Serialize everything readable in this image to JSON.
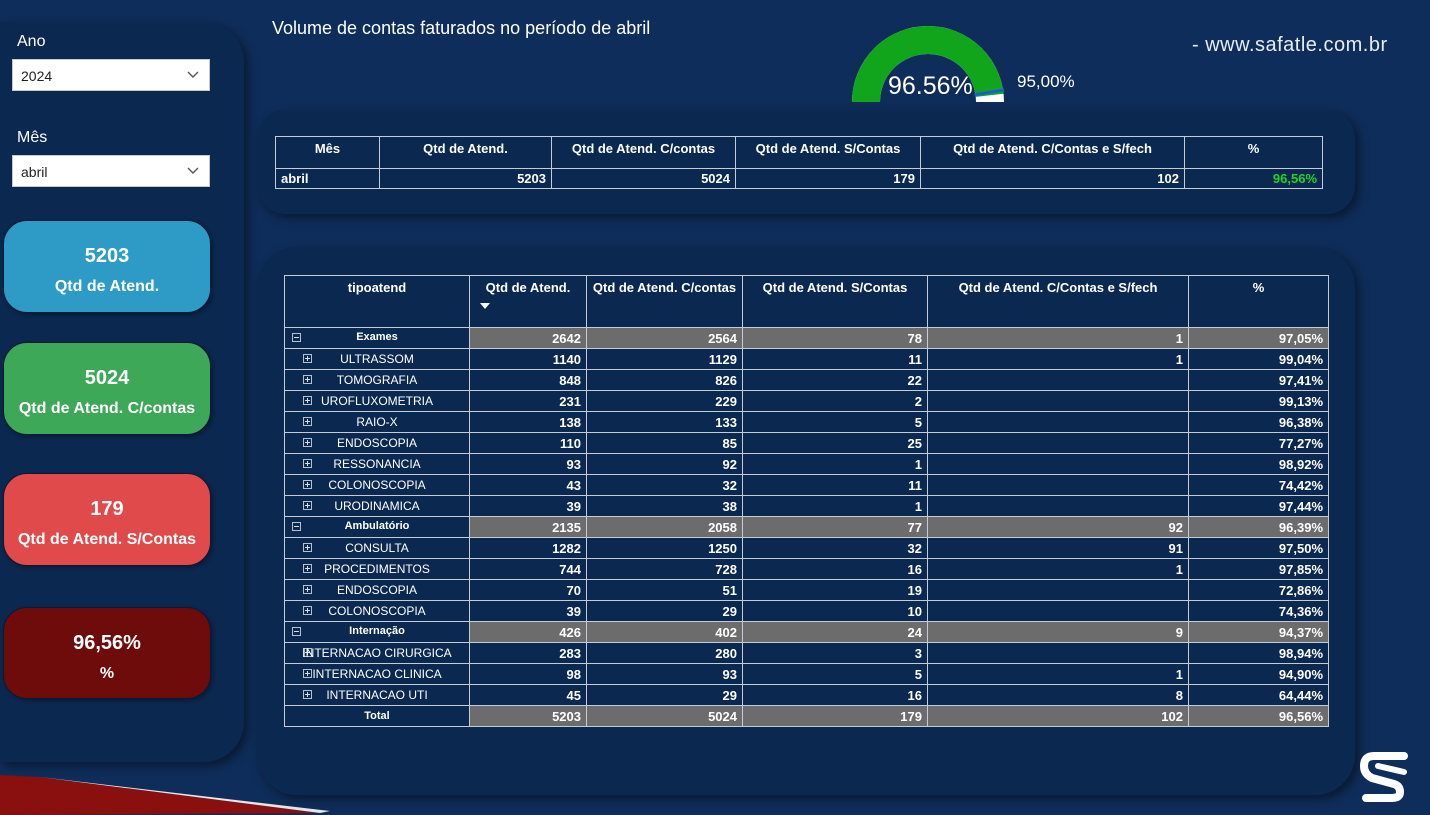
{
  "title": "Volume de contas faturados no período de abril",
  "website": "-   www.safatle.com.br",
  "filters": {
    "ano_label": "Ano",
    "ano_value": "2024",
    "mes_label": "Mês",
    "mes_value": "abril"
  },
  "kpis": [
    {
      "value": "5203",
      "label": "Qtd de Atend.",
      "color": "#2e9bc7"
    },
    {
      "value": "5024",
      "label": "Qtd de Atend. C/contas",
      "color": "#3da858"
    },
    {
      "value": "179",
      "label": "Qtd de Atend. S/Contas",
      "color": "#e04a4a"
    },
    {
      "value": "96,56%",
      "label": "%",
      "color": "#6e0b0b"
    }
  ],
  "gauge": {
    "value_label": "96.56%",
    "target_label": "95,00%",
    "value": 96.56,
    "target": 95.0,
    "fill_color": "#11a51c",
    "track_color": "#ffffff",
    "target_color": "#1a5bd6"
  },
  "summary_table": {
    "headers": [
      "Mês",
      "Qtd de Atend.",
      "Qtd de Atend. C/contas",
      "Qtd de Atend. S/Contas",
      "Qtd de Atend. C/Contas e S/fech",
      "%"
    ],
    "row": [
      "abril",
      "5203",
      "5024",
      "179",
      "102",
      "96,56%"
    ]
  },
  "detail_table": {
    "headers": [
      "tipoatend",
      "Qtd de Atend.",
      "Qtd de Atend. C/contas",
      "Qtd de Atend. S/Contas",
      "Qtd de Atend. C/Contas e S/fech",
      "%"
    ],
    "groups": [
      {
        "name": "Exames",
        "qtd": "2642",
        "com": "2564",
        "sem": "78",
        "fech": "1",
        "pct": "97,05%",
        "rows": [
          {
            "name": "ULTRASSOM",
            "qtd": "1140",
            "com": "1129",
            "sem": "11",
            "fech": "1",
            "pct": "99,04%",
            "status": "good"
          },
          {
            "name": "TOMOGRAFIA",
            "qtd": "848",
            "com": "826",
            "sem": "22",
            "fech": "",
            "pct": "97,41%",
            "status": "good"
          },
          {
            "name": "UROFLUXOMETRIA",
            "qtd": "231",
            "com": "229",
            "sem": "2",
            "fech": "",
            "pct": "99,13%",
            "status": "good"
          },
          {
            "name": "RAIO-X",
            "qtd": "138",
            "com": "133",
            "sem": "5",
            "fech": "",
            "pct": "96,38%",
            "status": "good"
          },
          {
            "name": "ENDOSCOPIA",
            "qtd": "110",
            "com": "85",
            "sem": "25",
            "fech": "",
            "pct": "77,27%",
            "status": "bad"
          },
          {
            "name": "RESSONANCIA",
            "qtd": "93",
            "com": "92",
            "sem": "1",
            "fech": "",
            "pct": "98,92%",
            "status": "good"
          },
          {
            "name": "COLONOSCOPIA",
            "qtd": "43",
            "com": "32",
            "sem": "11",
            "fech": "",
            "pct": "74,42%",
            "status": "bad"
          },
          {
            "name": "URODINAMICA",
            "qtd": "39",
            "com": "38",
            "sem": "1",
            "fech": "",
            "pct": "97,44%",
            "status": "good"
          }
        ]
      },
      {
        "name": "Ambulatório",
        "qtd": "2135",
        "com": "2058",
        "sem": "77",
        "fech": "92",
        "pct": "96,39%",
        "rows": [
          {
            "name": "CONSULTA",
            "qtd": "1282",
            "com": "1250",
            "sem": "32",
            "fech": "91",
            "pct": "97,50%",
            "status": "good"
          },
          {
            "name": "PROCEDIMENTOS",
            "qtd": "744",
            "com": "728",
            "sem": "16",
            "fech": "1",
            "pct": "97,85%",
            "status": "good"
          },
          {
            "name": "ENDOSCOPIA",
            "qtd": "70",
            "com": "51",
            "sem": "19",
            "fech": "",
            "pct": "72,86%",
            "status": "bad"
          },
          {
            "name": "COLONOSCOPIA",
            "qtd": "39",
            "com": "29",
            "sem": "10",
            "fech": "",
            "pct": "74,36%",
            "status": "bad"
          }
        ]
      },
      {
        "name": "Internação",
        "qtd": "426",
        "com": "402",
        "sem": "24",
        "fech": "9",
        "pct": "94,37%",
        "rows": [
          {
            "name": "INTERNACAO CIRURGICA",
            "qtd": "283",
            "com": "280",
            "sem": "3",
            "fech": "",
            "pct": "98,94%",
            "status": "good"
          },
          {
            "name": "INTERNACAO CLINICA",
            "qtd": "98",
            "com": "93",
            "sem": "5",
            "fech": "1",
            "pct": "94,90%",
            "status": "bad"
          },
          {
            "name": "INTERNACAO UTI",
            "qtd": "45",
            "com": "29",
            "sem": "16",
            "fech": "8",
            "pct": "64,44%",
            "status": "bad"
          }
        ]
      }
    ],
    "total": {
      "name": "Total",
      "qtd": "5203",
      "com": "5024",
      "sem": "179",
      "fech": "102",
      "pct": "96,56%"
    }
  },
  "icons": {
    "slicer_chevron": "chevron-down-icon",
    "collapse": "minus-square-icon",
    "expand": "plus-square-icon",
    "sort": "sort-desc-icon",
    "logo": "safatle-logo-icon"
  }
}
